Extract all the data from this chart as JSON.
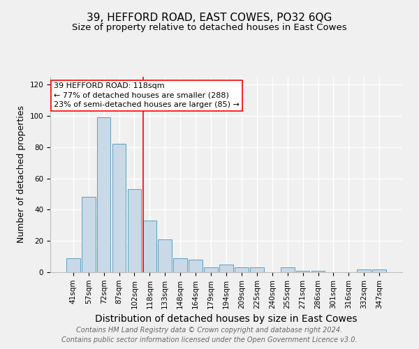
{
  "title": "39, HEFFORD ROAD, EAST COWES, PO32 6QG",
  "subtitle": "Size of property relative to detached houses in East Cowes",
  "xlabel": "Distribution of detached houses by size in East Cowes",
  "ylabel": "Number of detached properties",
  "footnote1": "Contains HM Land Registry data © Crown copyright and database right 2024.",
  "footnote2": "Contains public sector information licensed under the Open Government Licence v3.0.",
  "categories": [
    "41sqm",
    "57sqm",
    "72sqm",
    "87sqm",
    "102sqm",
    "118sqm",
    "133sqm",
    "148sqm",
    "164sqm",
    "179sqm",
    "194sqm",
    "209sqm",
    "225sqm",
    "240sqm",
    "255sqm",
    "271sqm",
    "286sqm",
    "301sqm",
    "316sqm",
    "332sqm",
    "347sqm"
  ],
  "values": [
    9,
    48,
    99,
    82,
    53,
    33,
    21,
    9,
    8,
    3,
    5,
    3,
    3,
    0,
    3,
    1,
    1,
    0,
    0,
    2,
    2
  ],
  "bar_color": "#c9d9e8",
  "bar_edge_color": "#5a9fc0",
  "vline_index": 5,
  "vline_color": "red",
  "annotation_text": "39 HEFFORD ROAD: 118sqm\n← 77% of detached houses are smaller (288)\n23% of semi-detached houses are larger (85) →",
  "annotation_box_color": "white",
  "annotation_box_edge": "red",
  "ylim": [
    0,
    125
  ],
  "yticks": [
    0,
    20,
    40,
    60,
    80,
    100,
    120
  ],
  "background_color": "#f0f0f0",
  "title_fontsize": 11,
  "subtitle_fontsize": 9.5,
  "xlabel_fontsize": 10,
  "ylabel_fontsize": 9,
  "tick_fontsize": 7.5,
  "annotation_fontsize": 8,
  "footnote_fontsize": 7
}
